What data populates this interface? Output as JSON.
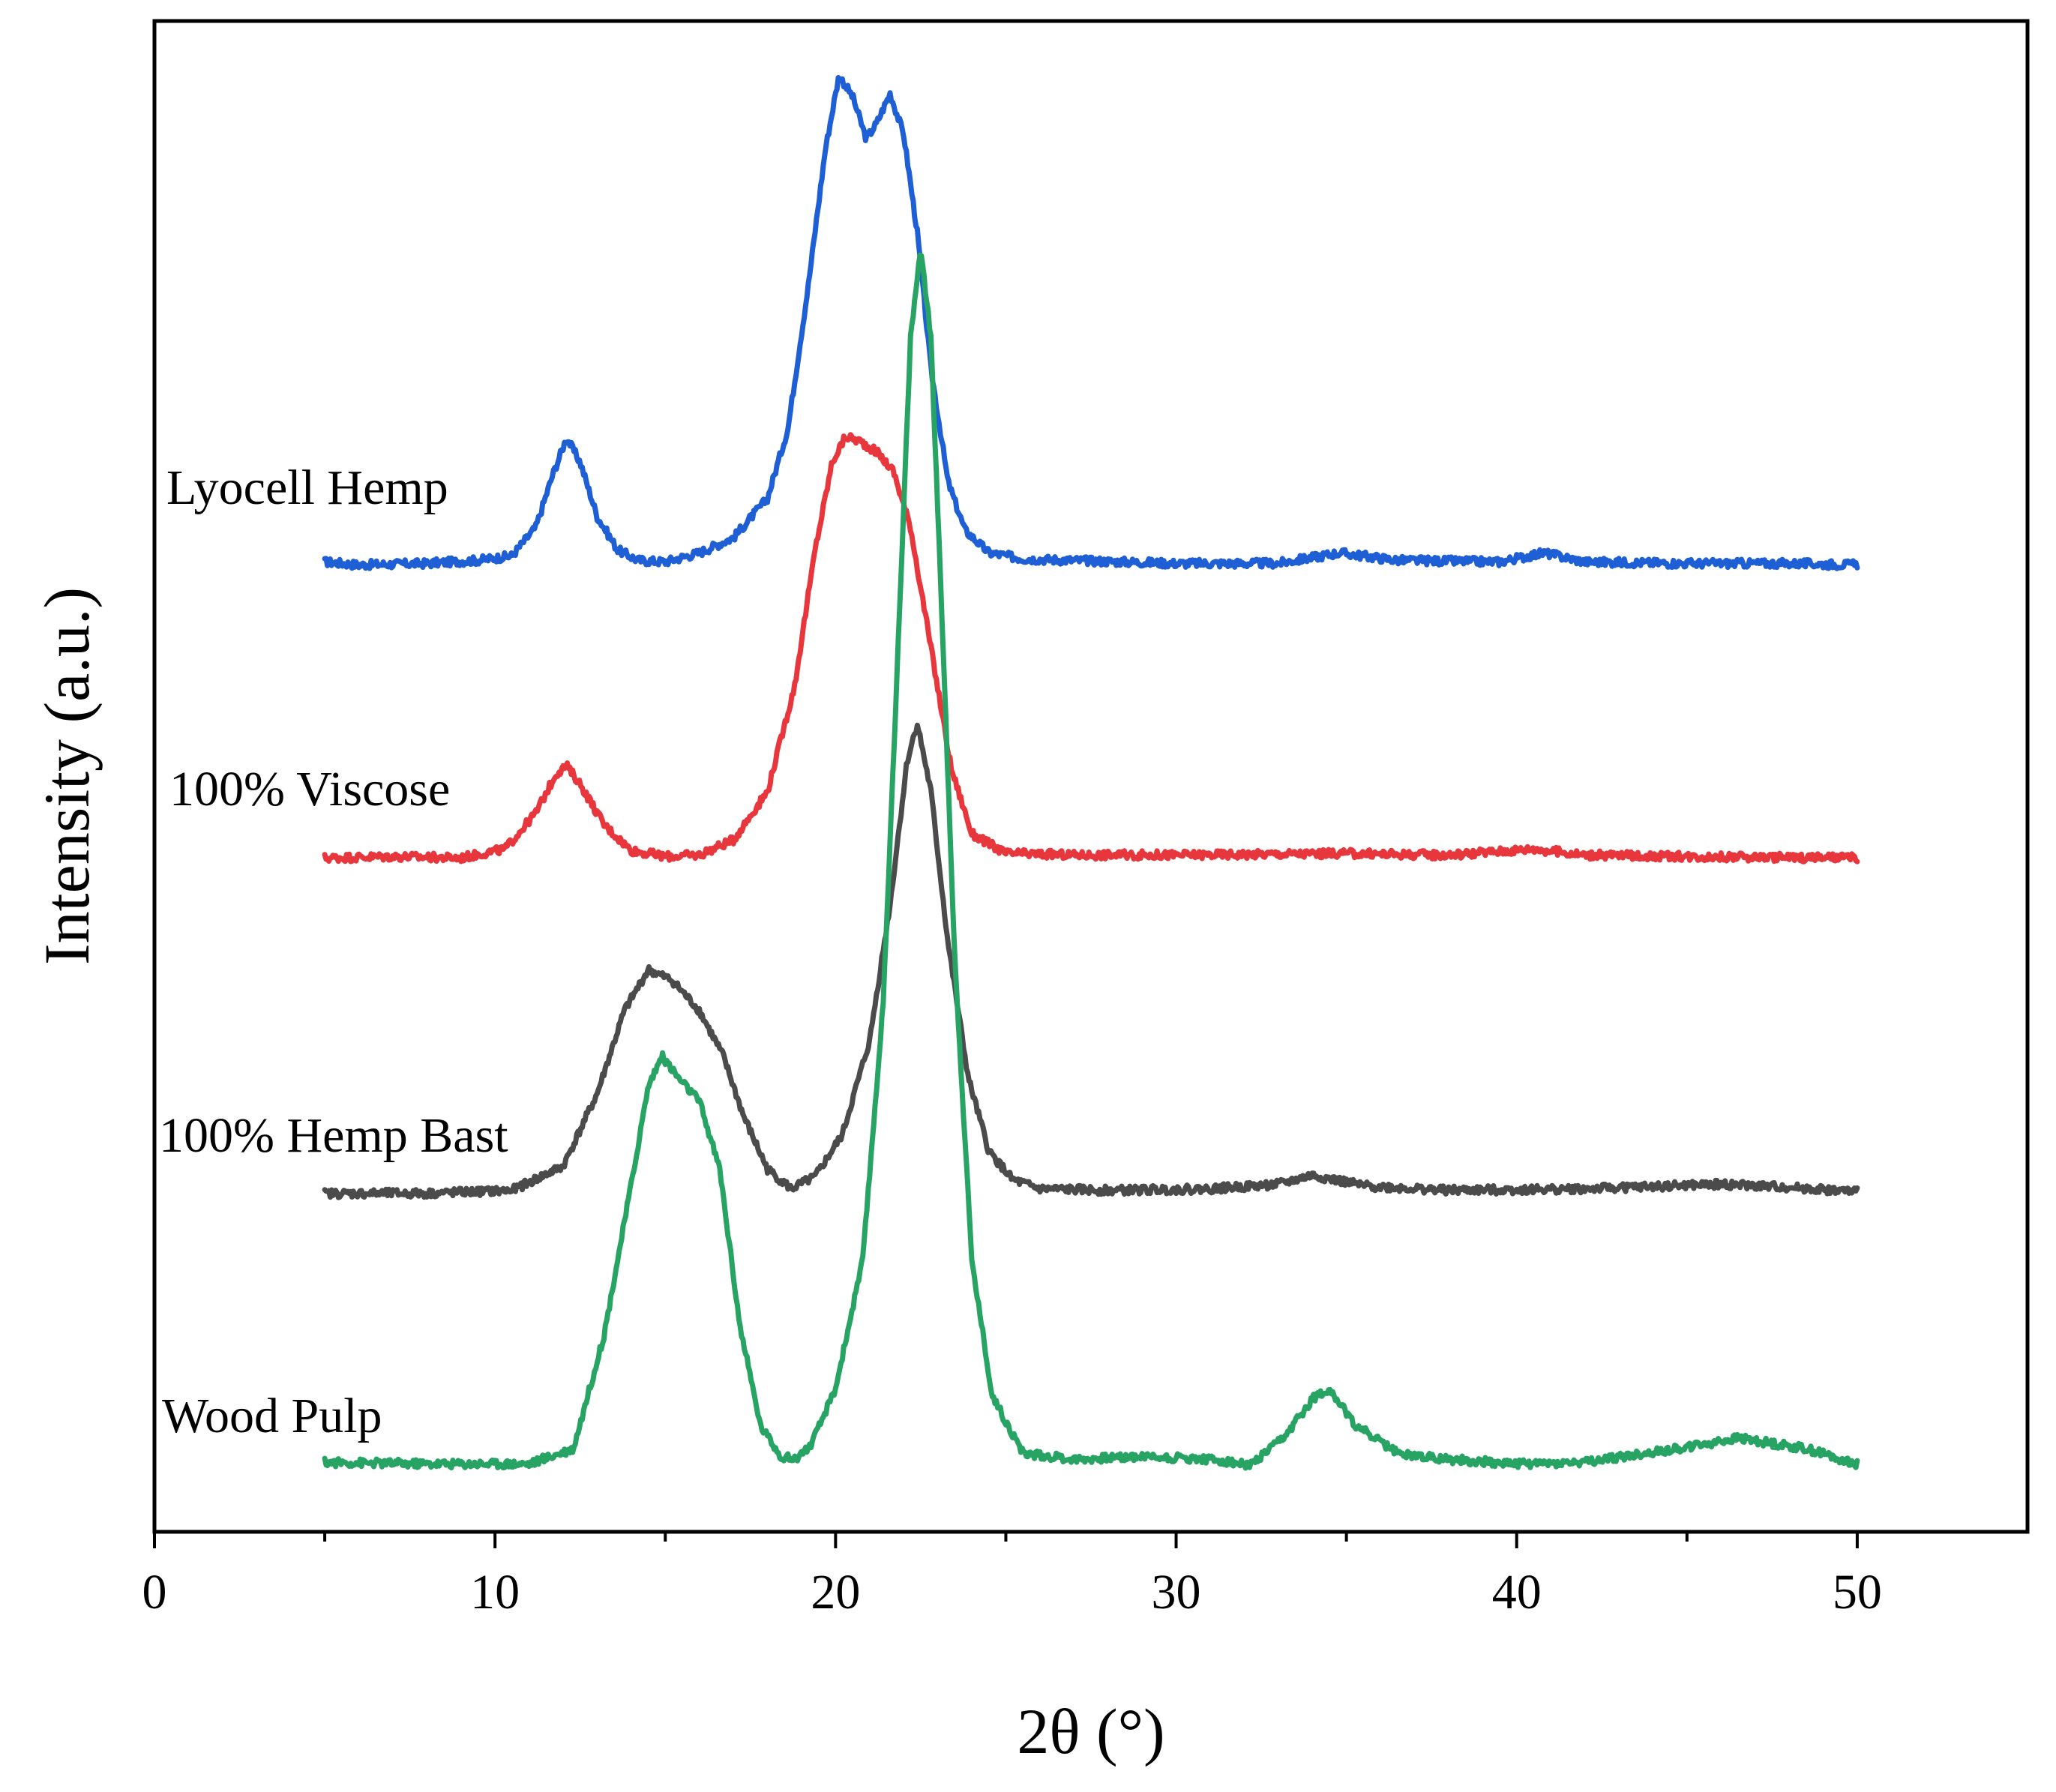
{
  "chart_data": {
    "type": "line",
    "title": "",
    "xlabel": "2θ (°)",
    "ylabel": "Intensity (a.u.)",
    "xlim": [
      0,
      55
    ],
    "ylim": [
      0,
      100
    ],
    "x_ticks": [
      0,
      10,
      20,
      30,
      40,
      50
    ],
    "y_ticks": [],
    "grid": false,
    "legend": "inline labels at left of each trace",
    "series": [
      {
        "name": "Lyocell Hemp",
        "color": "#1f5fd6",
        "x": [
          5,
          6,
          8,
          9.5,
          10.5,
          11.2,
          11.7,
          12.1,
          12.5,
          13,
          13.6,
          14.2,
          15,
          16,
          17,
          18,
          18.6,
          19.2,
          19.7,
          20.1,
          20.5,
          20.9,
          21.2,
          21.6,
          22,
          22.4,
          22.8,
          23.3,
          23.8,
          24.5,
          25.5,
          27,
          30,
          33,
          34.8,
          36.5,
          39.5,
          40.8,
          42,
          45,
          48,
          50
        ],
        "values": [
          64.2,
          64,
          64.1,
          64.3,
          64.6,
          66.5,
          70,
          72.4,
          70.8,
          67.2,
          65,
          64.3,
          64.2,
          64.8,
          65.8,
          68.4,
          73,
          82.5,
          91.5,
          96.4,
          95,
          92.2,
          93.2,
          95.2,
          92.5,
          86,
          77,
          69.5,
          66.3,
          64.8,
          64.4,
          64.3,
          64.1,
          64.1,
          64.8,
          64.3,
          64.2,
          64.8,
          64.2,
          64.1,
          64.1,
          64
        ]
      },
      {
        "name": "100% Viscose",
        "color": "#e8363d",
        "x": [
          5,
          7,
          9,
          10.3,
          11.2,
          11.8,
          12.1,
          12.5,
          13.2,
          14,
          15,
          16,
          17,
          18,
          18.8,
          19.4,
          19.9,
          20.3,
          20.7,
          21.2,
          21.7,
          22.2,
          22.8,
          23.4,
          24,
          25,
          27,
          30,
          35,
          38,
          40.5,
          42,
          45,
          50
        ],
        "values": [
          44.6,
          44.7,
          44.6,
          45.2,
          47.6,
          50.2,
          50.7,
          49.5,
          46.8,
          45.1,
          44.7,
          44.8,
          45.8,
          49,
          56,
          65,
          70.8,
          72.5,
          72.2,
          71.5,
          70.2,
          66.5,
          58.5,
          50.5,
          46.2,
          44.9,
          44.8,
          44.8,
          44.9,
          44.8,
          45.2,
          44.8,
          44.7,
          44.6
        ]
      },
      {
        "name": "100% Hemp Bast",
        "color": "#4b4b4b",
        "x": [
          5,
          8,
          10.5,
          12,
          13,
          13.8,
          14.5,
          15.2,
          16,
          16.7,
          17.3,
          18,
          18.7,
          19.4,
          20.2,
          21,
          21.6,
          22.1,
          22.4,
          22.8,
          23.3,
          23.9,
          24.5,
          25.2,
          26,
          28,
          31,
          33,
          34,
          35.5,
          38,
          42,
          46,
          48,
          50
        ],
        "values": [
          22.4,
          22.4,
          22.6,
          24.2,
          29,
          34.5,
          37.2,
          36.5,
          34.5,
          31.5,
          27.5,
          24,
          22.7,
          23.5,
          26.3,
          32.5,
          41.5,
          51,
          53.5,
          49,
          39,
          30,
          25.2,
          23.3,
          22.7,
          22.6,
          22.7,
          23,
          23.6,
          22.9,
          22.6,
          22.7,
          23,
          22.8,
          22.5
        ]
      },
      {
        "name": "Wood Pulp",
        "color": "#27a463",
        "x": [
          5,
          8,
          11,
          12.3,
          13.2,
          14,
          14.5,
          14.9,
          15.4,
          16,
          16.6,
          17.2,
          17.8,
          18.4,
          18.8,
          19.3,
          20,
          20.8,
          21.4,
          21.9,
          22.2,
          22.5,
          22.8,
          23.1,
          23.5,
          24,
          24.6,
          25.5,
          27,
          29,
          31,
          32.2,
          33.2,
          34,
          34.5,
          35.2,
          36.5,
          38,
          40,
          42,
          45,
          46.5,
          48.5,
          50
        ],
        "values": [
          4.6,
          4.5,
          4.5,
          5.5,
          13,
          23,
          29.5,
          31.5,
          30,
          28.5,
          24,
          13.5,
          7,
          5,
          4.8,
          5.8,
          9.5,
          18,
          35,
          62,
          79,
          85,
          79,
          62,
          38,
          18,
          9,
          5.2,
          4.8,
          5,
          4.8,
          4.4,
          6.3,
          8.8,
          9.5,
          7.2,
          5.2,
          4.8,
          4.5,
          4.6,
          5.6,
          6.2,
          5.5,
          4.5
        ]
      }
    ]
  }
}
